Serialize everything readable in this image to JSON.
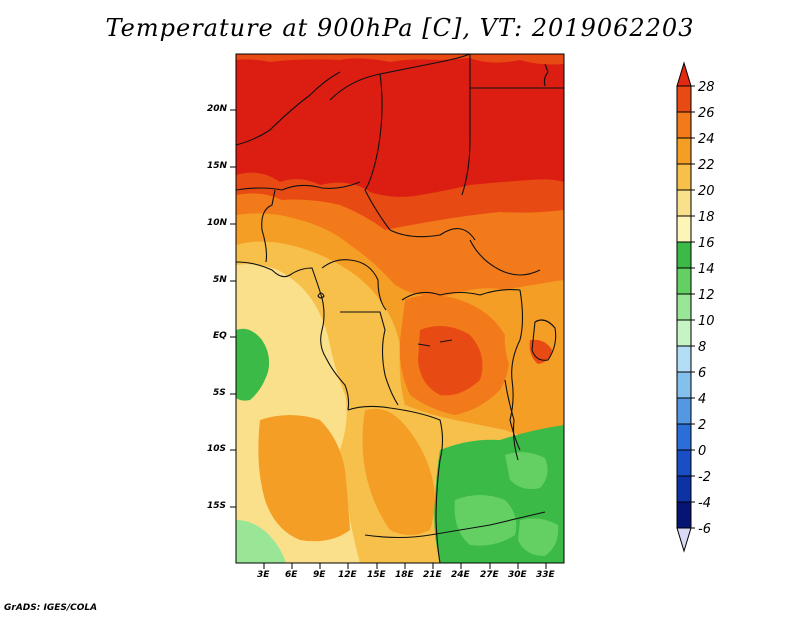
{
  "title": "Temperature at 900hPa [C], VT: 2019062203",
  "footer": "GrADS: IGES/COLA",
  "map": {
    "y_ticks": [
      "20N",
      "15N",
      "10N",
      "5N",
      "EQ",
      "5S",
      "10S",
      "15S"
    ],
    "x_ticks": [
      "3E",
      "6E",
      "9E",
      "12E",
      "15E",
      "18E",
      "21E",
      "24E",
      "27E",
      "30E",
      "33E"
    ]
  },
  "colorbar": {
    "labels": [
      "28",
      "26",
      "24",
      "22",
      "20",
      "18",
      "16",
      "14",
      "12",
      "10",
      "8",
      "6",
      "4",
      "2",
      "0",
      "-2",
      "-4",
      "-6"
    ],
    "colors": [
      "#dc1e12",
      "#e84a14",
      "#f27a1a",
      "#f59e26",
      "#f7c04a",
      "#fbe08c",
      "#fdf4b8",
      "#3cba48",
      "#64d064",
      "#98e696",
      "#c6f4c4",
      "#b4def6",
      "#84c0ee",
      "#5498e2",
      "#2c6ed8",
      "#1a4ec4",
      "#0c32a4",
      "#061474"
    ],
    "top_triangle": "#e02a12",
    "bottom_triangle": "#d8daf6"
  }
}
